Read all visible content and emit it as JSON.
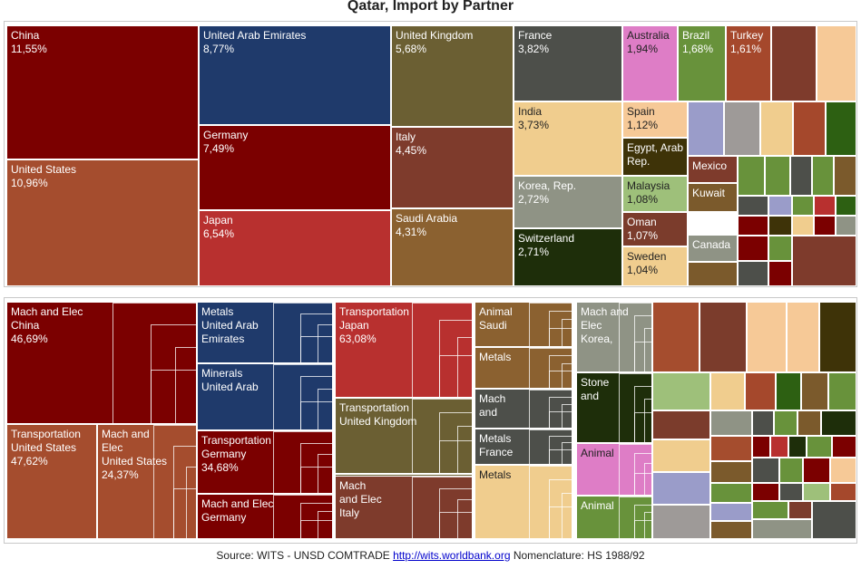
{
  "title": "Qatar, Import by Partner",
  "footer": {
    "source": "Source: WITS - UNSD COMTRADE",
    "link": "http://wits.worldbank.org",
    "nomenclature": "Nomenclature: HS 1988/92"
  },
  "chart_data": [
    {
      "type": "treemap",
      "title": "Qatar, Import by Partner",
      "unit": "% share of imports",
      "items": [
        {
          "name": "China",
          "value": 11.55,
          "label": "China\n11,55%",
          "color": "#7b0000"
        },
        {
          "name": "United States",
          "value": 10.96,
          "label": "United States\n10,96%",
          "color": "#a54d2e"
        },
        {
          "name": "United Arab Emirates",
          "value": 8.77,
          "label": "United Arab Emirates\n8,77%",
          "color": "#1f3a6b"
        },
        {
          "name": "Germany",
          "value": 7.49,
          "label": "Germany\n7,49%",
          "color": "#7b0000"
        },
        {
          "name": "Japan",
          "value": 6.54,
          "label": "Japan\n6,54%",
          "color": "#b8302f"
        },
        {
          "name": "United Kingdom",
          "value": 5.68,
          "label": "United Kingdom\n5,68%",
          "color": "#6b5f33"
        },
        {
          "name": "Italy",
          "value": 4.45,
          "label": "Italy\n4,45%",
          "color": "#7e3b2c"
        },
        {
          "name": "Saudi Arabia",
          "value": 4.31,
          "label": "Saudi Arabia\n4,31%",
          "color": "#8b6130"
        },
        {
          "name": "France",
          "value": 3.82,
          "label": "France\n3,82%",
          "color": "#4d4f4a"
        },
        {
          "name": "India",
          "value": 3.73,
          "label": "India\n3,73%",
          "color": "#f0cd8e"
        },
        {
          "name": "Korea, Rep.",
          "value": 2.72,
          "label": "Korea, Rep.\n2,72%",
          "color": "#8f9385"
        },
        {
          "name": "Switzerland",
          "value": 2.71,
          "label": "Switzerland\n2,71%",
          "color": "#1e2e0a"
        },
        {
          "name": "Australia",
          "value": 1.94,
          "label": "Australia\n1,94%",
          "color": "#de7dc6"
        },
        {
          "name": "Brazil",
          "value": 1.68,
          "label": "Brazil\n1,68%",
          "color": "#68923b"
        },
        {
          "name": "Turkey",
          "value": 1.61,
          "label": "Turkey\n1,61%",
          "color": "#a5482c"
        },
        {
          "name": "Spain",
          "value": 1.12,
          "label": "Spain\n1,12%",
          "color": "#f6c997"
        },
        {
          "name": "Egypt, Arab Rep.",
          "value": null,
          "label": "Egypt, Arab\nRep.",
          "color": "#3e3308"
        },
        {
          "name": "Malaysia",
          "value": 1.08,
          "label": "Malaysia\n1,08%",
          "color": "#9ec07a"
        },
        {
          "name": "Oman",
          "value": 1.07,
          "label": "Oman\n1,07%",
          "color": "#7b3c2c"
        },
        {
          "name": "Sweden",
          "value": 1.04,
          "label": "Sweden\n1,04%",
          "color": "#f0cd8e"
        },
        {
          "name": "Mexico",
          "value": null,
          "label": "Mexico",
          "color": "#7e3b2c"
        },
        {
          "name": "Kuwait",
          "value": null,
          "label": "Kuwait",
          "color": "#7b5a2c"
        },
        {
          "name": "Canada",
          "value": null,
          "label": "Canada",
          "color": "#8f9385"
        }
      ]
    },
    {
      "type": "treemap",
      "title": "",
      "unit": "% share of partner's imports",
      "items": [
        {
          "group": "China",
          "label": "Mach and Elec\nChina\n46,69%",
          "value": 46.69,
          "color": "#7b0000"
        },
        {
          "group": "United States",
          "label": "Transportation\nUnited States\n47,62%",
          "value": 47.62,
          "color": "#a54d2e"
        },
        {
          "group": "United States",
          "label": "Mach and\nElec\nUnited States\n24,37%",
          "value": 24.37,
          "color": "#a54d2e"
        },
        {
          "group": "United Arab Emirates",
          "label": "Metals\nUnited Arab\nEmirates",
          "value": null,
          "color": "#1f3a6b"
        },
        {
          "group": "United Arab Emirates",
          "label": "Minerals\nUnited Arab",
          "value": null,
          "color": "#1f3a6b"
        },
        {
          "group": "Germany",
          "label": "Transportation\nGermany\n34,68%",
          "value": 34.68,
          "color": "#7b0000"
        },
        {
          "group": "Germany",
          "label": "Mach and Elec\nGermany",
          "value": null,
          "color": "#7b0000"
        },
        {
          "group": "Japan",
          "label": "Transportation\nJapan\n63,08%",
          "value": 63.08,
          "color": "#b8302f"
        },
        {
          "group": "United Kingdom",
          "label": "Transportation\nUnited Kingdom",
          "value": null,
          "color": "#6b5f33"
        },
        {
          "group": "United Kingdom",
          "label": "Mach and Elec",
          "value": null,
          "color": "#6b5f33"
        },
        {
          "group": "Italy",
          "label": "Mach\nand Elec\nItaly",
          "value": null,
          "color": "#7e3b2c"
        },
        {
          "group": "Saudi Arabia",
          "label": "Animal\nSaudi",
          "value": null,
          "color": "#8b6130"
        },
        {
          "group": "Saudi Arabia",
          "label": "Metals",
          "value": null,
          "color": "#8b6130"
        },
        {
          "group": "France",
          "label": "Mach\nand",
          "value": null,
          "color": "#4d4f4a"
        },
        {
          "group": "France",
          "label": "Metals\nFrance",
          "value": null,
          "color": "#4d4f4a"
        },
        {
          "group": "India",
          "label": "Metals",
          "value": null,
          "color": "#f0cd8e"
        },
        {
          "group": "Korea, Rep.",
          "label": "Mach and\nElec\nKorea,",
          "value": null,
          "color": "#8f9385"
        },
        {
          "group": "Switzerland",
          "label": "Stone\nand",
          "value": null,
          "color": "#1e2e0a"
        },
        {
          "group": "Australia",
          "label": "Animal",
          "value": null,
          "color": "#de7dc6"
        },
        {
          "group": "Brazil",
          "label": "Animal",
          "value": null,
          "color": "#68923b"
        }
      ]
    }
  ]
}
